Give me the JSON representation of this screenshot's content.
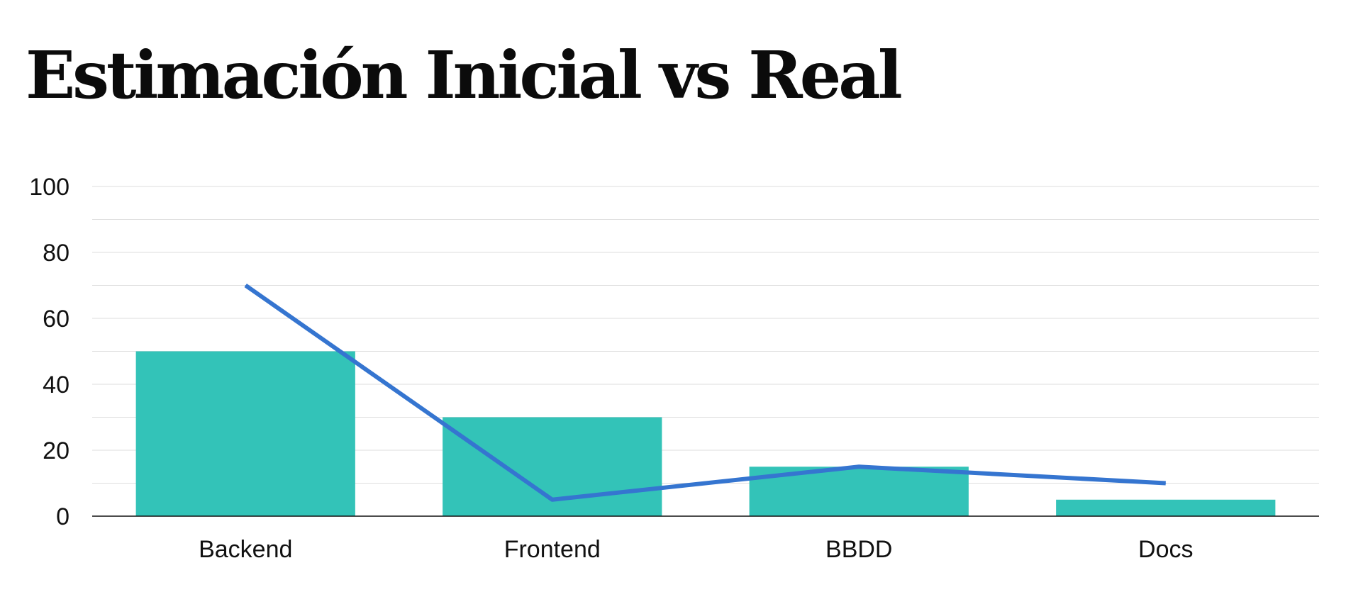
{
  "chart_data": {
    "type": "bar",
    "title": "Estimación Inicial vs Real",
    "xlabel": "",
    "ylabel": "",
    "categories": [
      "Backend",
      "Frontend",
      "BBDD",
      "Docs"
    ],
    "series": [
      {
        "type": "bar",
        "values": [
          50,
          30,
          15,
          5
        ]
      },
      {
        "type": "line",
        "values": [
          70,
          5,
          15,
          10
        ]
      }
    ],
    "ylim": [
      0,
      100
    ],
    "yticks": [
      0,
      20,
      40,
      60,
      80,
      100
    ],
    "grid": true,
    "legend": "none"
  },
  "colors": {
    "bar": "#33c3b8",
    "line": "#3575d0",
    "grid": "#dedede",
    "axis": "#111111"
  }
}
